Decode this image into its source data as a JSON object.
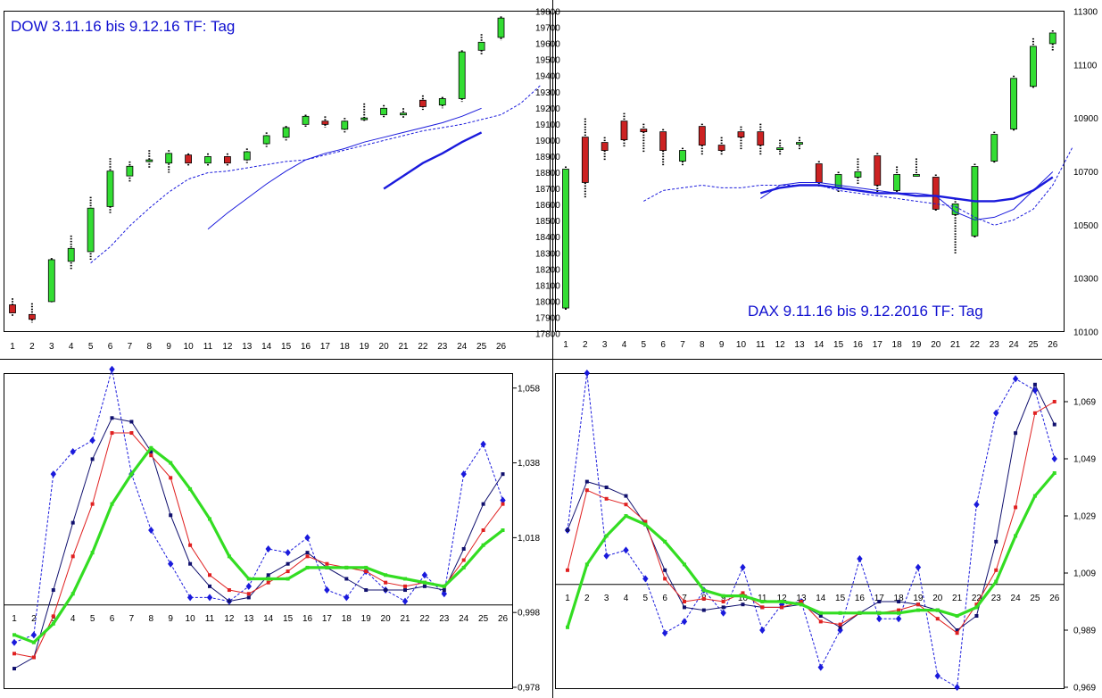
{
  "colors": {
    "up": "#33dd33",
    "down": "#cc2222",
    "blue": "#1a1adc",
    "navy": "#10106e",
    "red": "#e02020",
    "green": "#33dd22",
    "frame": "#000000"
  },
  "chart_data": [
    {
      "id": "dow-candles",
      "type": "candlestick",
      "title": "DOW 3.11.16 bis 9.12.16  TF: Tag",
      "categories": [
        "1",
        "2",
        "3",
        "4",
        "5",
        "6",
        "7",
        "8",
        "9",
        "10",
        "11",
        "12",
        "13",
        "14",
        "15",
        "16",
        "17",
        "18",
        "19",
        "20",
        "21",
        "22",
        "23",
        "24",
        "25",
        "26"
      ],
      "yticks": [
        "17800",
        "17900",
        "18000",
        "18100",
        "18200",
        "18300",
        "18400",
        "18500",
        "18600",
        "18700",
        "18800",
        "18900",
        "19000",
        "19100",
        "19200",
        "19300",
        "19400",
        "19500",
        "19600",
        "19700",
        "19800"
      ],
      "ylim": [
        17800,
        19800
      ],
      "candles": [
        {
          "o": 17980,
          "c": 17930,
          "h": 18020,
          "l": 17910
        },
        {
          "o": 17920,
          "c": 17890,
          "h": 17990,
          "l": 17870
        },
        {
          "o": 18000,
          "c": 18260,
          "h": 18270,
          "l": 17990
        },
        {
          "o": 18250,
          "c": 18330,
          "h": 18410,
          "l": 18200
        },
        {
          "o": 18310,
          "c": 18580,
          "h": 18650,
          "l": 18260
        },
        {
          "o": 18590,
          "c": 18810,
          "h": 18890,
          "l": 18550
        },
        {
          "o": 18780,
          "c": 18840,
          "h": 18870,
          "l": 18740
        },
        {
          "o": 18880,
          "c": 18880,
          "h": 18940,
          "l": 18830
        },
        {
          "o": 18860,
          "c": 18920,
          "h": 18940,
          "l": 18800
        },
        {
          "o": 18910,
          "c": 18860,
          "h": 18920,
          "l": 18840
        },
        {
          "o": 18860,
          "c": 18900,
          "h": 18920,
          "l": 18840
        },
        {
          "o": 18900,
          "c": 18860,
          "h": 18920,
          "l": 18840
        },
        {
          "o": 18880,
          "c": 18930,
          "h": 18950,
          "l": 18860
        },
        {
          "o": 18980,
          "c": 19030,
          "h": 19050,
          "l": 18960
        },
        {
          "o": 19020,
          "c": 19080,
          "h": 19090,
          "l": 19000
        },
        {
          "o": 19100,
          "c": 19150,
          "h": 19160,
          "l": 19080
        },
        {
          "o": 19120,
          "c": 19100,
          "h": 19150,
          "l": 19080
        },
        {
          "o": 19070,
          "c": 19120,
          "h": 19140,
          "l": 19050
        },
        {
          "o": 19130,
          "c": 19140,
          "h": 19230,
          "l": 19120
        },
        {
          "o": 19160,
          "c": 19200,
          "h": 19220,
          "l": 19140
        },
        {
          "o": 19170,
          "c": 19170,
          "h": 19200,
          "l": 19140
        },
        {
          "o": 19250,
          "c": 19210,
          "h": 19280,
          "l": 19190
        },
        {
          "o": 19220,
          "c": 19260,
          "h": 19270,
          "l": 19200
        },
        {
          "o": 19260,
          "c": 19550,
          "h": 19560,
          "l": 19240
        },
        {
          "o": 19560,
          "c": 19610,
          "h": 19660,
          "l": 19530
        },
        {
          "o": 19640,
          "c": 19760,
          "h": 19770,
          "l": 19620
        }
      ],
      "lines": [
        {
          "name": "dashed MA",
          "style": "dashed",
          "start": 5,
          "values": [
            18240,
            18340,
            18470,
            18580,
            18680,
            18760,
            18800,
            18810,
            18830,
            18850,
            18870,
            18880,
            18910,
            18940,
            18970,
            19000,
            19030,
            19060,
            19080,
            19100,
            19130,
            19160,
            19230,
            19340
          ]
        },
        {
          "name": "MA",
          "style": "thin",
          "start": 11,
          "values": [
            18450,
            18550,
            18640,
            18730,
            18810,
            18880,
            18920,
            18950,
            18990,
            19020,
            19050,
            19080,
            19110,
            19150,
            19200
          ]
        },
        {
          "name": "MA long",
          "style": "thick",
          "start": 20,
          "values": [
            18700,
            18780,
            18860,
            18920,
            18990,
            19050
          ]
        }
      ]
    },
    {
      "id": "dax-candles",
      "type": "candlestick",
      "title": "DAX 9.11.16 bis 9.12.2016   TF: Tag",
      "categories": [
        "1",
        "2",
        "3",
        "4",
        "5",
        "6",
        "7",
        "8",
        "9",
        "10",
        "11",
        "12",
        "13",
        "14",
        "15",
        "16",
        "17",
        "18",
        "19",
        "20",
        "21",
        "22",
        "23",
        "24",
        "25",
        "26"
      ],
      "yticks": [
        "10100",
        "10300",
        "10500",
        "10700",
        "10900",
        "11100",
        "11300"
      ],
      "ylim": [
        10100,
        11300
      ],
      "candles": [
        {
          "o": 10190,
          "c": 10710,
          "h": 10720,
          "l": 10180
        },
        {
          "o": 10830,
          "c": 10660,
          "h": 10900,
          "l": 10600
        },
        {
          "o": 10810,
          "c": 10780,
          "h": 10830,
          "l": 10740
        },
        {
          "o": 10890,
          "c": 10820,
          "h": 10920,
          "l": 10790
        },
        {
          "o": 10860,
          "c": 10850,
          "h": 10880,
          "l": 10770
        },
        {
          "o": 10850,
          "c": 10780,
          "h": 10860,
          "l": 10720
        },
        {
          "o": 10740,
          "c": 10780,
          "h": 10790,
          "l": 10720
        },
        {
          "o": 10870,
          "c": 10800,
          "h": 10880,
          "l": 10760
        },
        {
          "o": 10800,
          "c": 10780,
          "h": 10830,
          "l": 10760
        },
        {
          "o": 10850,
          "c": 10830,
          "h": 10870,
          "l": 10780
        },
        {
          "o": 10850,
          "c": 10800,
          "h": 10880,
          "l": 10760
        },
        {
          "o": 10790,
          "c": 10790,
          "h": 10820,
          "l": 10760
        },
        {
          "o": 10810,
          "c": 10810,
          "h": 10830,
          "l": 10780
        },
        {
          "o": 10730,
          "c": 10660,
          "h": 10740,
          "l": 10640
        },
        {
          "o": 10640,
          "c": 10690,
          "h": 10700,
          "l": 10620
        },
        {
          "o": 10680,
          "c": 10700,
          "h": 10750,
          "l": 10650
        },
        {
          "o": 10760,
          "c": 10650,
          "h": 10770,
          "l": 10620
        },
        {
          "o": 10630,
          "c": 10690,
          "h": 10720,
          "l": 10620
        },
        {
          "o": 10690,
          "c": 10690,
          "h": 10750,
          "l": 10680
        },
        {
          "o": 10680,
          "c": 10560,
          "h": 10690,
          "l": 10550
        },
        {
          "o": 10540,
          "c": 10580,
          "h": 10600,
          "l": 10390
        },
        {
          "o": 10460,
          "c": 10720,
          "h": 10730,
          "l": 10450
        },
        {
          "o": 10740,
          "c": 10840,
          "h": 10850,
          "l": 10730
        },
        {
          "o": 10860,
          "c": 11050,
          "h": 11060,
          "l": 10850
        },
        {
          "o": 11020,
          "c": 11170,
          "h": 11200,
          "l": 11010
        },
        {
          "o": 11180,
          "c": 11220,
          "h": 11230,
          "l": 11150
        }
      ],
      "lines": [
        {
          "name": "dashed MA",
          "style": "dashed",
          "start": 5,
          "values": [
            10590,
            10630,
            10640,
            10650,
            10640,
            10640,
            10650,
            10650,
            10650,
            10650,
            10630,
            10620,
            10610,
            10600,
            10590,
            10580,
            10570,
            10530,
            10500,
            10520,
            10560,
            10650,
            10790
          ]
        },
        {
          "name": "MA",
          "style": "thin",
          "start": 11,
          "values": [
            10600,
            10650,
            10660,
            10660,
            10650,
            10640,
            10630,
            10620,
            10620,
            10610,
            10550,
            10520,
            10530,
            10560,
            10630,
            10700
          ]
        },
        {
          "name": "MA long",
          "style": "thick",
          "start": 11,
          "values": [
            10620,
            10640,
            10650,
            10650,
            10640,
            10630,
            10620,
            10620,
            10610,
            10610,
            10600,
            10590,
            10590,
            10600,
            10630,
            10680
          ]
        }
      ]
    },
    {
      "id": "dow-oscillator",
      "type": "line",
      "categories": [
        "1",
        "2",
        "3",
        "4",
        "5",
        "6",
        "7",
        "8",
        "9",
        "10",
        "11",
        "12",
        "13",
        "14",
        "15",
        "16",
        "17",
        "18",
        "19",
        "20",
        "21",
        "22",
        "23",
        "24",
        "25",
        "26"
      ],
      "yticks": [
        "0,978",
        "0,998",
        "1,018",
        "1,038",
        "1,058"
      ],
      "ylim": [
        0.978,
        1.062
      ],
      "baseline": 1.0,
      "series": [
        {
          "name": "dashed",
          "color": "blue",
          "style": "dashed",
          "marker": "diamond",
          "values": [
            0.99,
            0.992,
            1.035,
            1.041,
            1.044,
            1.063,
            1.035,
            1.02,
            1.011,
            1.002,
            1.002,
            1.001,
            1.005,
            1.015,
            1.014,
            1.018,
            1.004,
            1.002,
            1.009,
            1.004,
            1.001,
            1.008,
            1.003,
            1.035,
            1.043,
            1.028
          ]
        },
        {
          "name": "navy",
          "color": "navy",
          "style": "solid",
          "marker": "square",
          "values": [
            0.983,
            0.986,
            1.004,
            1.022,
            1.039,
            1.05,
            1.049,
            1.041,
            1.024,
            1.011,
            1.005,
            1.001,
            1.002,
            1.008,
            1.011,
            1.014,
            1.01,
            1.007,
            1.004,
            1.004,
            1.004,
            1.005,
            1.004,
            1.015,
            1.027,
            1.035
          ]
        },
        {
          "name": "red",
          "color": "red",
          "style": "solid",
          "marker": "square",
          "values": [
            0.987,
            0.986,
            0.997,
            1.013,
            1.027,
            1.046,
            1.046,
            1.04,
            1.034,
            1.016,
            1.008,
            1.004,
            1.003,
            1.006,
            1.009,
            1.013,
            1.011,
            1.01,
            1.009,
            1.006,
            1.005,
            1.006,
            1.005,
            1.012,
            1.02,
            1.027
          ]
        },
        {
          "name": "green",
          "color": "green",
          "style": "thick",
          "marker": "square",
          "values": [
            0.992,
            0.99,
            0.995,
            1.003,
            1.014,
            1.027,
            1.035,
            1.042,
            1.038,
            1.031,
            1.023,
            1.013,
            1.007,
            1.007,
            1.007,
            1.01,
            1.01,
            1.01,
            1.01,
            1.008,
            1.007,
            1.006,
            1.005,
            1.01,
            1.016,
            1.02
          ]
        }
      ]
    },
    {
      "id": "dax-oscillator",
      "type": "line",
      "categories": [
        "1",
        "2",
        "3",
        "4",
        "5",
        "6",
        "7",
        "8",
        "9",
        "10",
        "11",
        "12",
        "13",
        "14",
        "15",
        "16",
        "17",
        "18",
        "19",
        "20",
        "21",
        "22",
        "23",
        "24",
        "25",
        "26"
      ],
      "yticks": [
        "0,969",
        "0,989",
        "1,009",
        "1,029",
        "1,049",
        "1,069"
      ],
      "ylim": [
        0.969,
        1.079
      ],
      "baseline": 1.005,
      "series": [
        {
          "name": "dashed",
          "color": "blue",
          "style": "dashed",
          "marker": "diamond",
          "values": [
            1.024,
            1.079,
            1.015,
            1.017,
            1.007,
            0.988,
            0.992,
            1.003,
            0.995,
            1.011,
            0.989,
            0.998,
            0.999,
            0.976,
            0.989,
            1.014,
            0.993,
            0.993,
            1.011,
            0.973,
            0.969,
            1.033,
            1.065,
            1.077,
            1.073,
            1.049
          ]
        },
        {
          "name": "navy",
          "color": "navy",
          "style": "solid",
          "marker": "square",
          "values": [
            1.024,
            1.041,
            1.039,
            1.036,
            1.026,
            1.01,
            0.997,
            0.996,
            0.997,
            0.998,
            0.997,
            0.997,
            0.998,
            0.994,
            0.99,
            0.995,
            0.999,
            0.999,
            0.998,
            0.996,
            0.989,
            0.994,
            1.02,
            1.058,
            1.075,
            1.061
          ]
        },
        {
          "name": "red",
          "color": "red",
          "style": "solid",
          "marker": "square",
          "values": [
            1.01,
            1.038,
            1.035,
            1.033,
            1.027,
            1.007,
            0.999,
            1.0,
            0.999,
            1.002,
            0.997,
            0.997,
            0.999,
            0.992,
            0.991,
            0.995,
            0.995,
            0.996,
            0.998,
            0.993,
            0.988,
            0.998,
            1.01,
            1.032,
            1.065,
            1.069
          ]
        },
        {
          "name": "green",
          "color": "green",
          "style": "thick",
          "marker": "square",
          "values": [
            0.99,
            1.012,
            1.022,
            1.029,
            1.026,
            1.02,
            1.012,
            1.003,
            1.001,
            1.001,
            0.999,
            0.999,
            0.998,
            0.995,
            0.995,
            0.995,
            0.995,
            0.995,
            0.996,
            0.996,
            0.994,
            0.997,
            1.006,
            1.022,
            1.036,
            1.044
          ]
        }
      ]
    }
  ]
}
